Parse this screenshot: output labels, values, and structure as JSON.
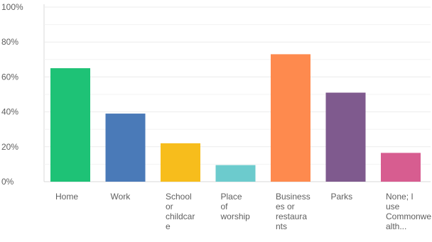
{
  "chart_data": {
    "type": "bar",
    "title": "",
    "xlabel": "",
    "ylabel": "",
    "ylim": [
      0,
      100
    ],
    "y_ticks": [
      0,
      20,
      40,
      60,
      80,
      100
    ],
    "y_tick_labels": [
      "0%",
      "20%",
      "40%",
      "60%",
      "80%",
      "100%"
    ],
    "grid": true,
    "legend": "none",
    "categories": [
      "Home",
      "Work",
      "School or childcare",
      "Place of worship",
      "Businesses or restaurants",
      "Parks",
      "None; I use Commonwealth..."
    ],
    "category_label_lines": [
      [
        "Home"
      ],
      [
        "Work"
      ],
      [
        "School",
        "or",
        "childcar",
        "e"
      ],
      [
        "Place",
        "of",
        "worship"
      ],
      [
        "Business",
        "es or",
        "restaura",
        "nts"
      ],
      [
        "Parks"
      ],
      [
        "None; I",
        "use",
        "Commonwe",
        "alth..."
      ]
    ],
    "values": [
      65,
      39,
      22,
      9.5,
      73,
      51,
      16.5
    ],
    "colors": [
      "#1ec276",
      "#4a7ab8",
      "#f7bd1c",
      "#6ccbcd",
      "#fe8a4e",
      "#7f5a8e",
      "#d75d90"
    ]
  }
}
